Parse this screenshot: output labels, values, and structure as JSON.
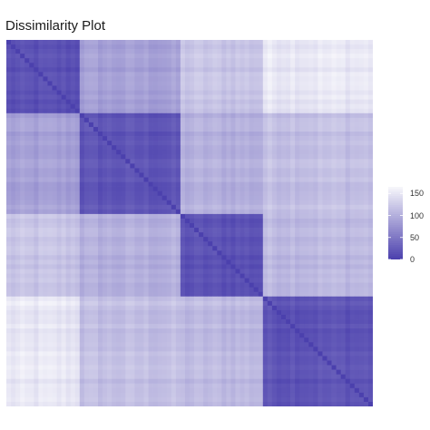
{
  "chart_data": {
    "type": "heatmap",
    "title": "Dissimilarity Plot",
    "matrix_size": 80,
    "block_boundaries": [
      0,
      16,
      38,
      56,
      80
    ],
    "block_level": [
      [
        15,
        85,
        118,
        150
      ],
      [
        85,
        20,
        100,
        115
      ],
      [
        118,
        100,
        18,
        110
      ],
      [
        150,
        115,
        110,
        22
      ]
    ],
    "axis_text": false,
    "color_scale": {
      "low": "#4b40ad",
      "high": "#f7f7fb",
      "min": 0,
      "max": 165
    },
    "legend": {
      "position": "right",
      "ticks": [
        {
          "value": 150,
          "label": "150"
        },
        {
          "value": 100,
          "label": "100"
        },
        {
          "value": 50,
          "label": "50"
        },
        {
          "value": 0,
          "label": "0"
        }
      ]
    }
  }
}
